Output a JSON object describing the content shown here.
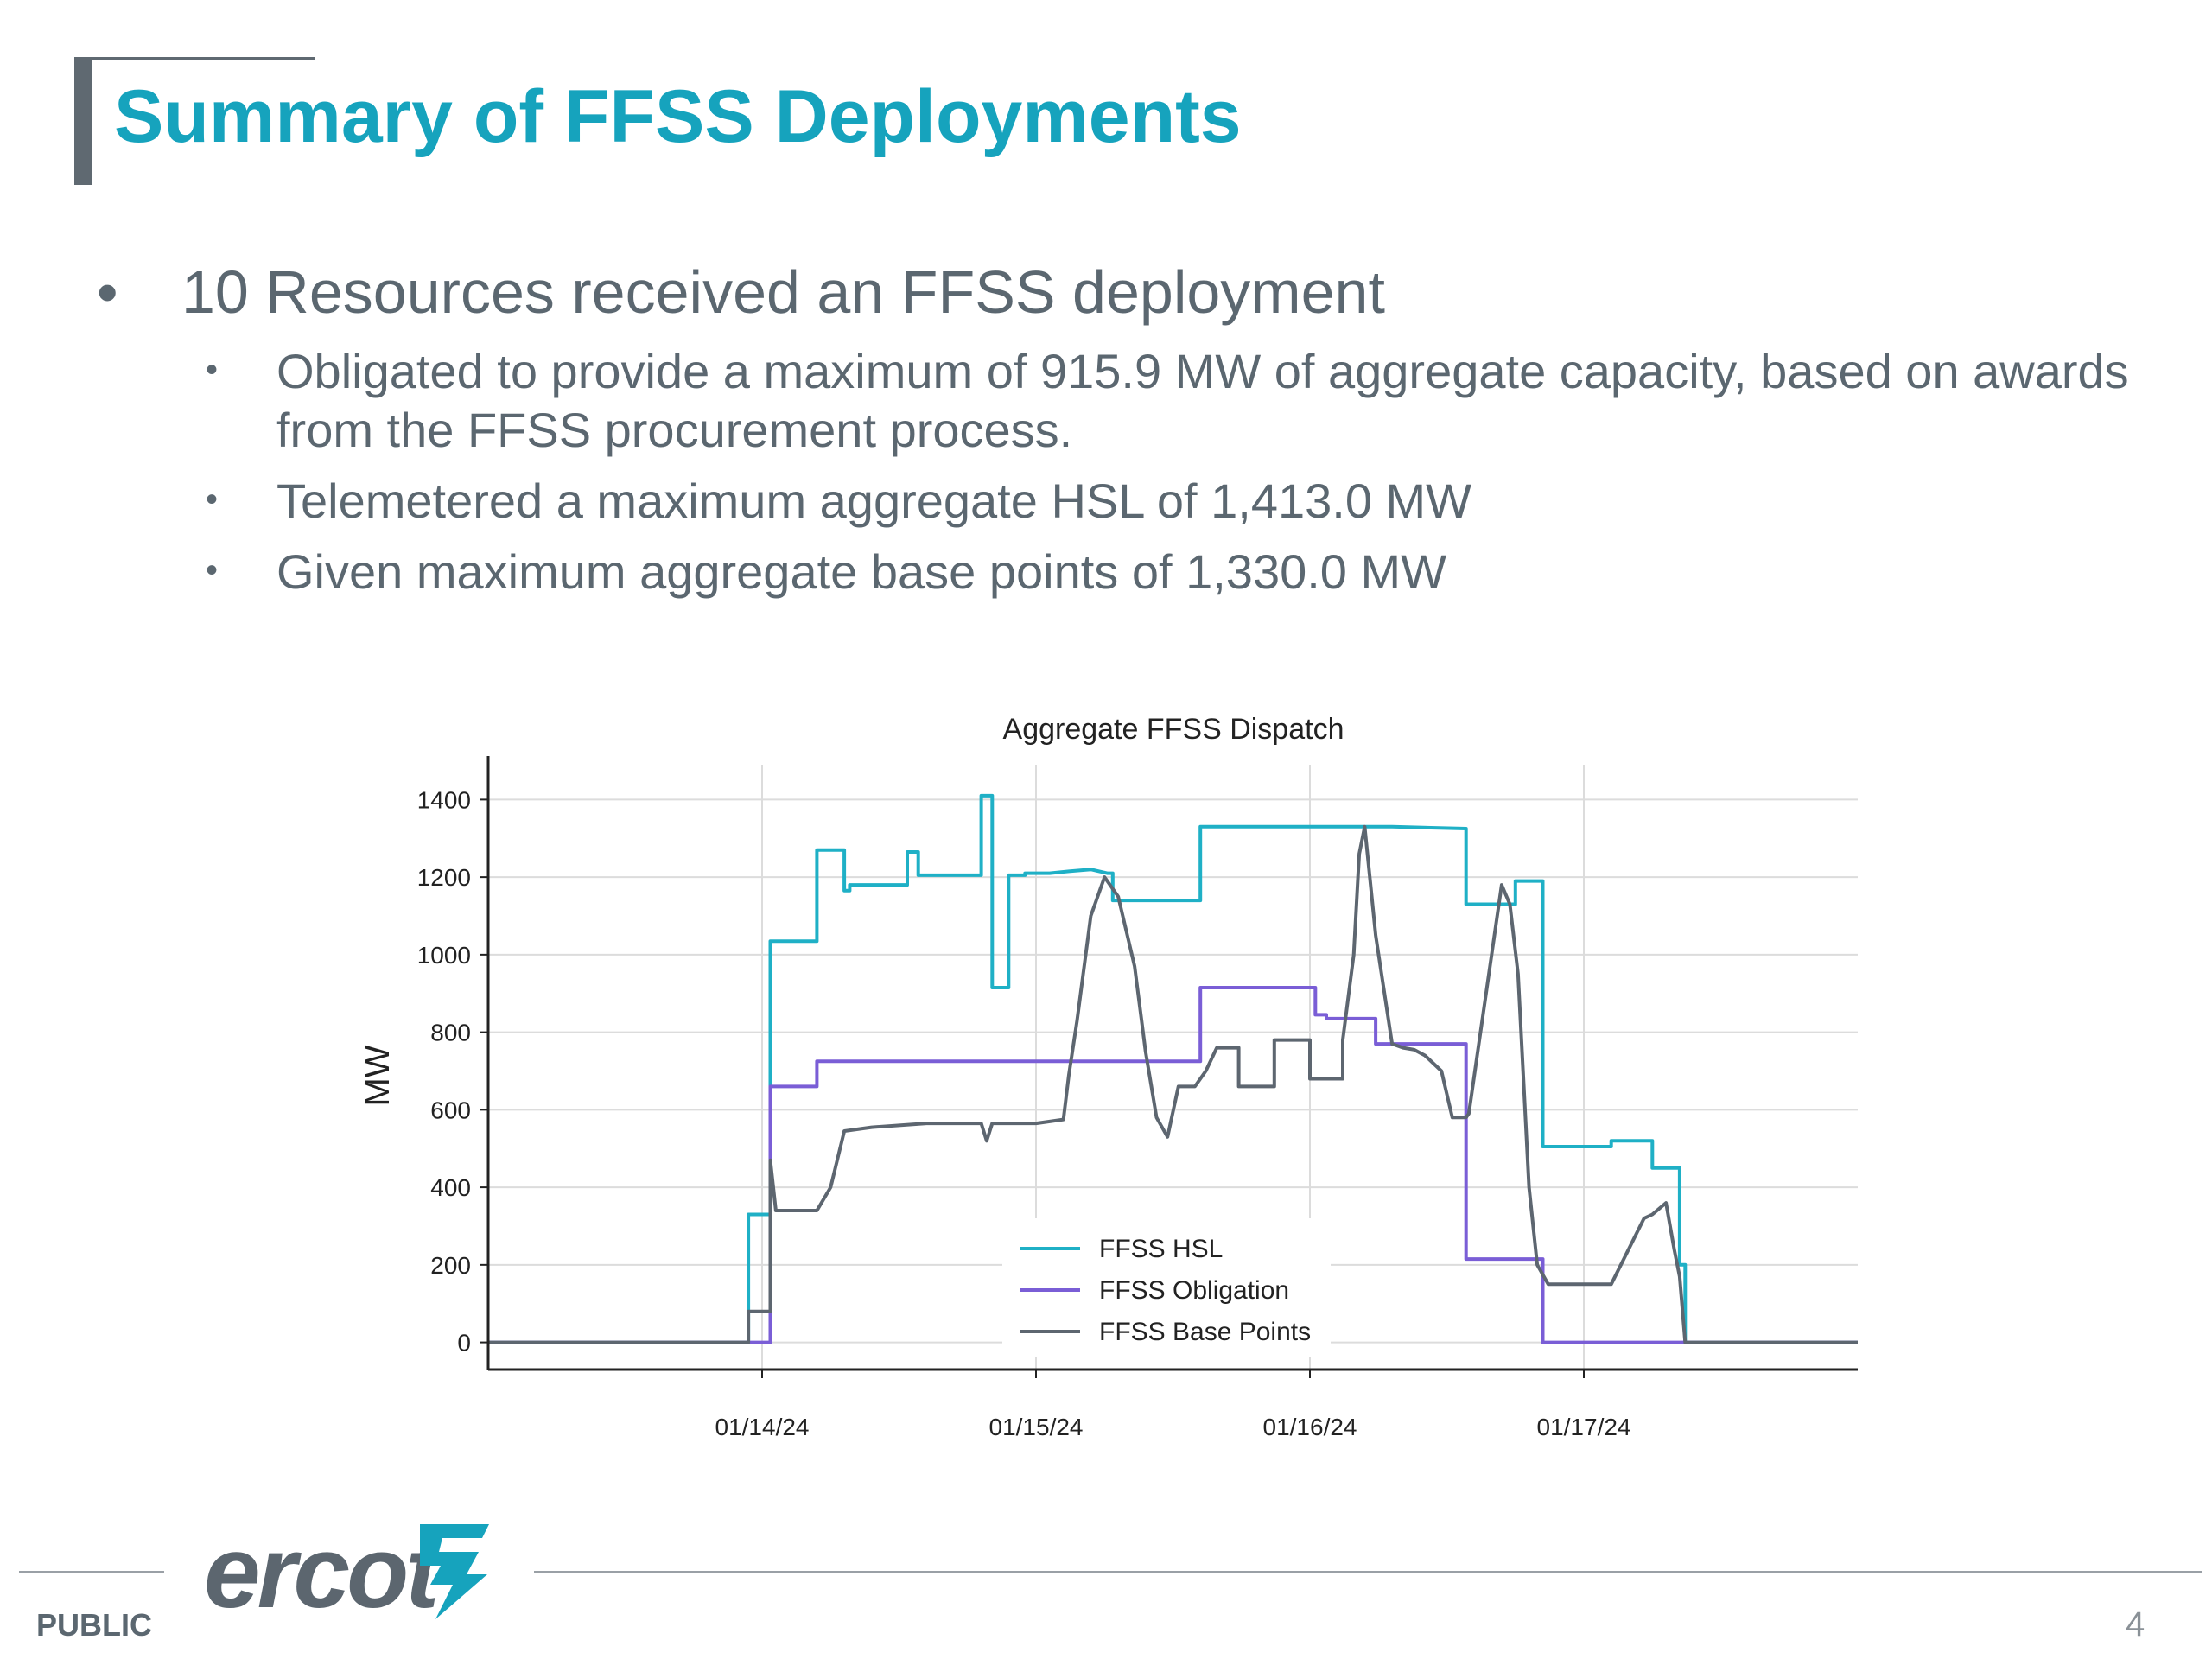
{
  "slide": {
    "title": "Summary of FFSS Deployments",
    "bullets": [
      {
        "text": "10 Resources received an FFSS deployment",
        "subbullets": [
          "Obligated to provide a maximum of 915.9 MW of aggregate capacity, based on awards from the FFSS procurement process.",
          "Telemetered a maximum aggregate HSL of 1,413.0 MW",
          "Given maximum aggregate base points of 1,330.0 MW"
        ]
      }
    ]
  },
  "footer": {
    "classification": "PUBLIC",
    "logo_text": "ercot",
    "page_number": "4"
  },
  "colors": {
    "title": "#16a3bd",
    "body_text": "#5b6770",
    "hsl": "#1fb0c6",
    "obligation": "#7a5ed6",
    "base_points": "#5d6670"
  },
  "chart_data": {
    "type": "line",
    "title": "Aggregate FFSS Dispatch",
    "xlabel": "",
    "ylabel": "MW",
    "xlim": [
      -1.0,
      4.0
    ],
    "ylim": [
      -70,
      1490
    ],
    "x_ticks": [
      0,
      1,
      2,
      3
    ],
    "x_tick_labels": [
      "01/14/24",
      "01/15/24",
      "01/16/24",
      "01/17/24"
    ],
    "y_ticks": [
      0,
      200,
      400,
      600,
      800,
      1000,
      1200,
      1400
    ],
    "grid": true,
    "legend_position": "bottom-center",
    "series": [
      {
        "name": "FFSS HSL",
        "color": "#1fb0c6",
        "x": [
          -1.0,
          -0.05,
          -0.05,
          0.03,
          0.03,
          0.2,
          0.2,
          0.3,
          0.3,
          0.32,
          0.32,
          0.35,
          0.35,
          0.53,
          0.53,
          0.57,
          0.57,
          0.78,
          0.78,
          0.8,
          0.8,
          0.84,
          0.84,
          0.9,
          0.9,
          0.96,
          0.96,
          1.05,
          1.12,
          1.2,
          1.26,
          1.28,
          1.28,
          1.6,
          1.6,
          2.0,
          2.3,
          2.57,
          2.57,
          2.75,
          2.75,
          2.85,
          2.85,
          3.1,
          3.1,
          3.25,
          3.25,
          3.35,
          3.35,
          3.37,
          3.37,
          4.0
        ],
        "y": [
          0,
          0,
          330,
          330,
          1035,
          1035,
          1270,
          1270,
          1165,
          1165,
          1180,
          1180,
          1180,
          1180,
          1265,
          1265,
          1205,
          1205,
          1205,
          1205,
          1410,
          1410,
          915,
          915,
          1205,
          1205,
          1210,
          1210,
          1215,
          1220,
          1210,
          1210,
          1140,
          1140,
          1330,
          1330,
          1330,
          1325,
          1130,
          1130,
          1190,
          1190,
          505,
          505,
          520,
          520,
          450,
          450,
          200,
          200,
          0,
          0
        ]
      },
      {
        "name": "FFSS Obligation",
        "color": "#7a5ed6",
        "x": [
          -1.0,
          0.03,
          0.03,
          0.2,
          0.2,
          1.6,
          1.6,
          2.02,
          2.02,
          2.06,
          2.06,
          2.24,
          2.24,
          2.57,
          2.57,
          2.85,
          2.85,
          4.0
        ],
        "y": [
          0,
          0,
          660,
          660,
          725,
          725,
          915,
          915,
          845,
          845,
          835,
          835,
          770,
          770,
          215,
          215,
          0,
          0
        ]
      },
      {
        "name": "FFSS Base Points",
        "color": "#5d6670",
        "x": [
          -1.0,
          -0.05,
          -0.05,
          0.03,
          0.03,
          0.05,
          0.1,
          0.2,
          0.25,
          0.3,
          0.4,
          0.6,
          0.8,
          0.82,
          0.84,
          0.86,
          1.0,
          1.1,
          1.12,
          1.15,
          1.2,
          1.25,
          1.3,
          1.36,
          1.4,
          1.44,
          1.48,
          1.52,
          1.58,
          1.62,
          1.66,
          1.74,
          1.74,
          1.87,
          1.87,
          2.0,
          2.0,
          2.12,
          2.12,
          2.16,
          2.18,
          2.2,
          2.24,
          2.3,
          2.34,
          2.38,
          2.42,
          2.48,
          2.52,
          2.57,
          2.58,
          2.7,
          2.73,
          2.76,
          2.8,
          2.83,
          2.87,
          2.9,
          3.0,
          3.1,
          3.22,
          3.25,
          3.3,
          3.33,
          3.35,
          3.37,
          3.37,
          4.0
        ],
        "y": [
          0,
          0,
          80,
          80,
          470,
          340,
          340,
          340,
          400,
          545,
          555,
          565,
          565,
          520,
          565,
          565,
          565,
          575,
          690,
          830,
          1100,
          1200,
          1150,
          970,
          750,
          580,
          530,
          660,
          660,
          700,
          760,
          760,
          660,
          660,
          780,
          780,
          680,
          680,
          780,
          1000,
          1260,
          1330,
          1050,
          770,
          760,
          755,
          740,
          700,
          580,
          580,
          590,
          1180,
          1130,
          950,
          400,
          200,
          150,
          150,
          150,
          150,
          320,
          330,
          360,
          240,
          170,
          0,
          0,
          0
        ]
      }
    ]
  }
}
